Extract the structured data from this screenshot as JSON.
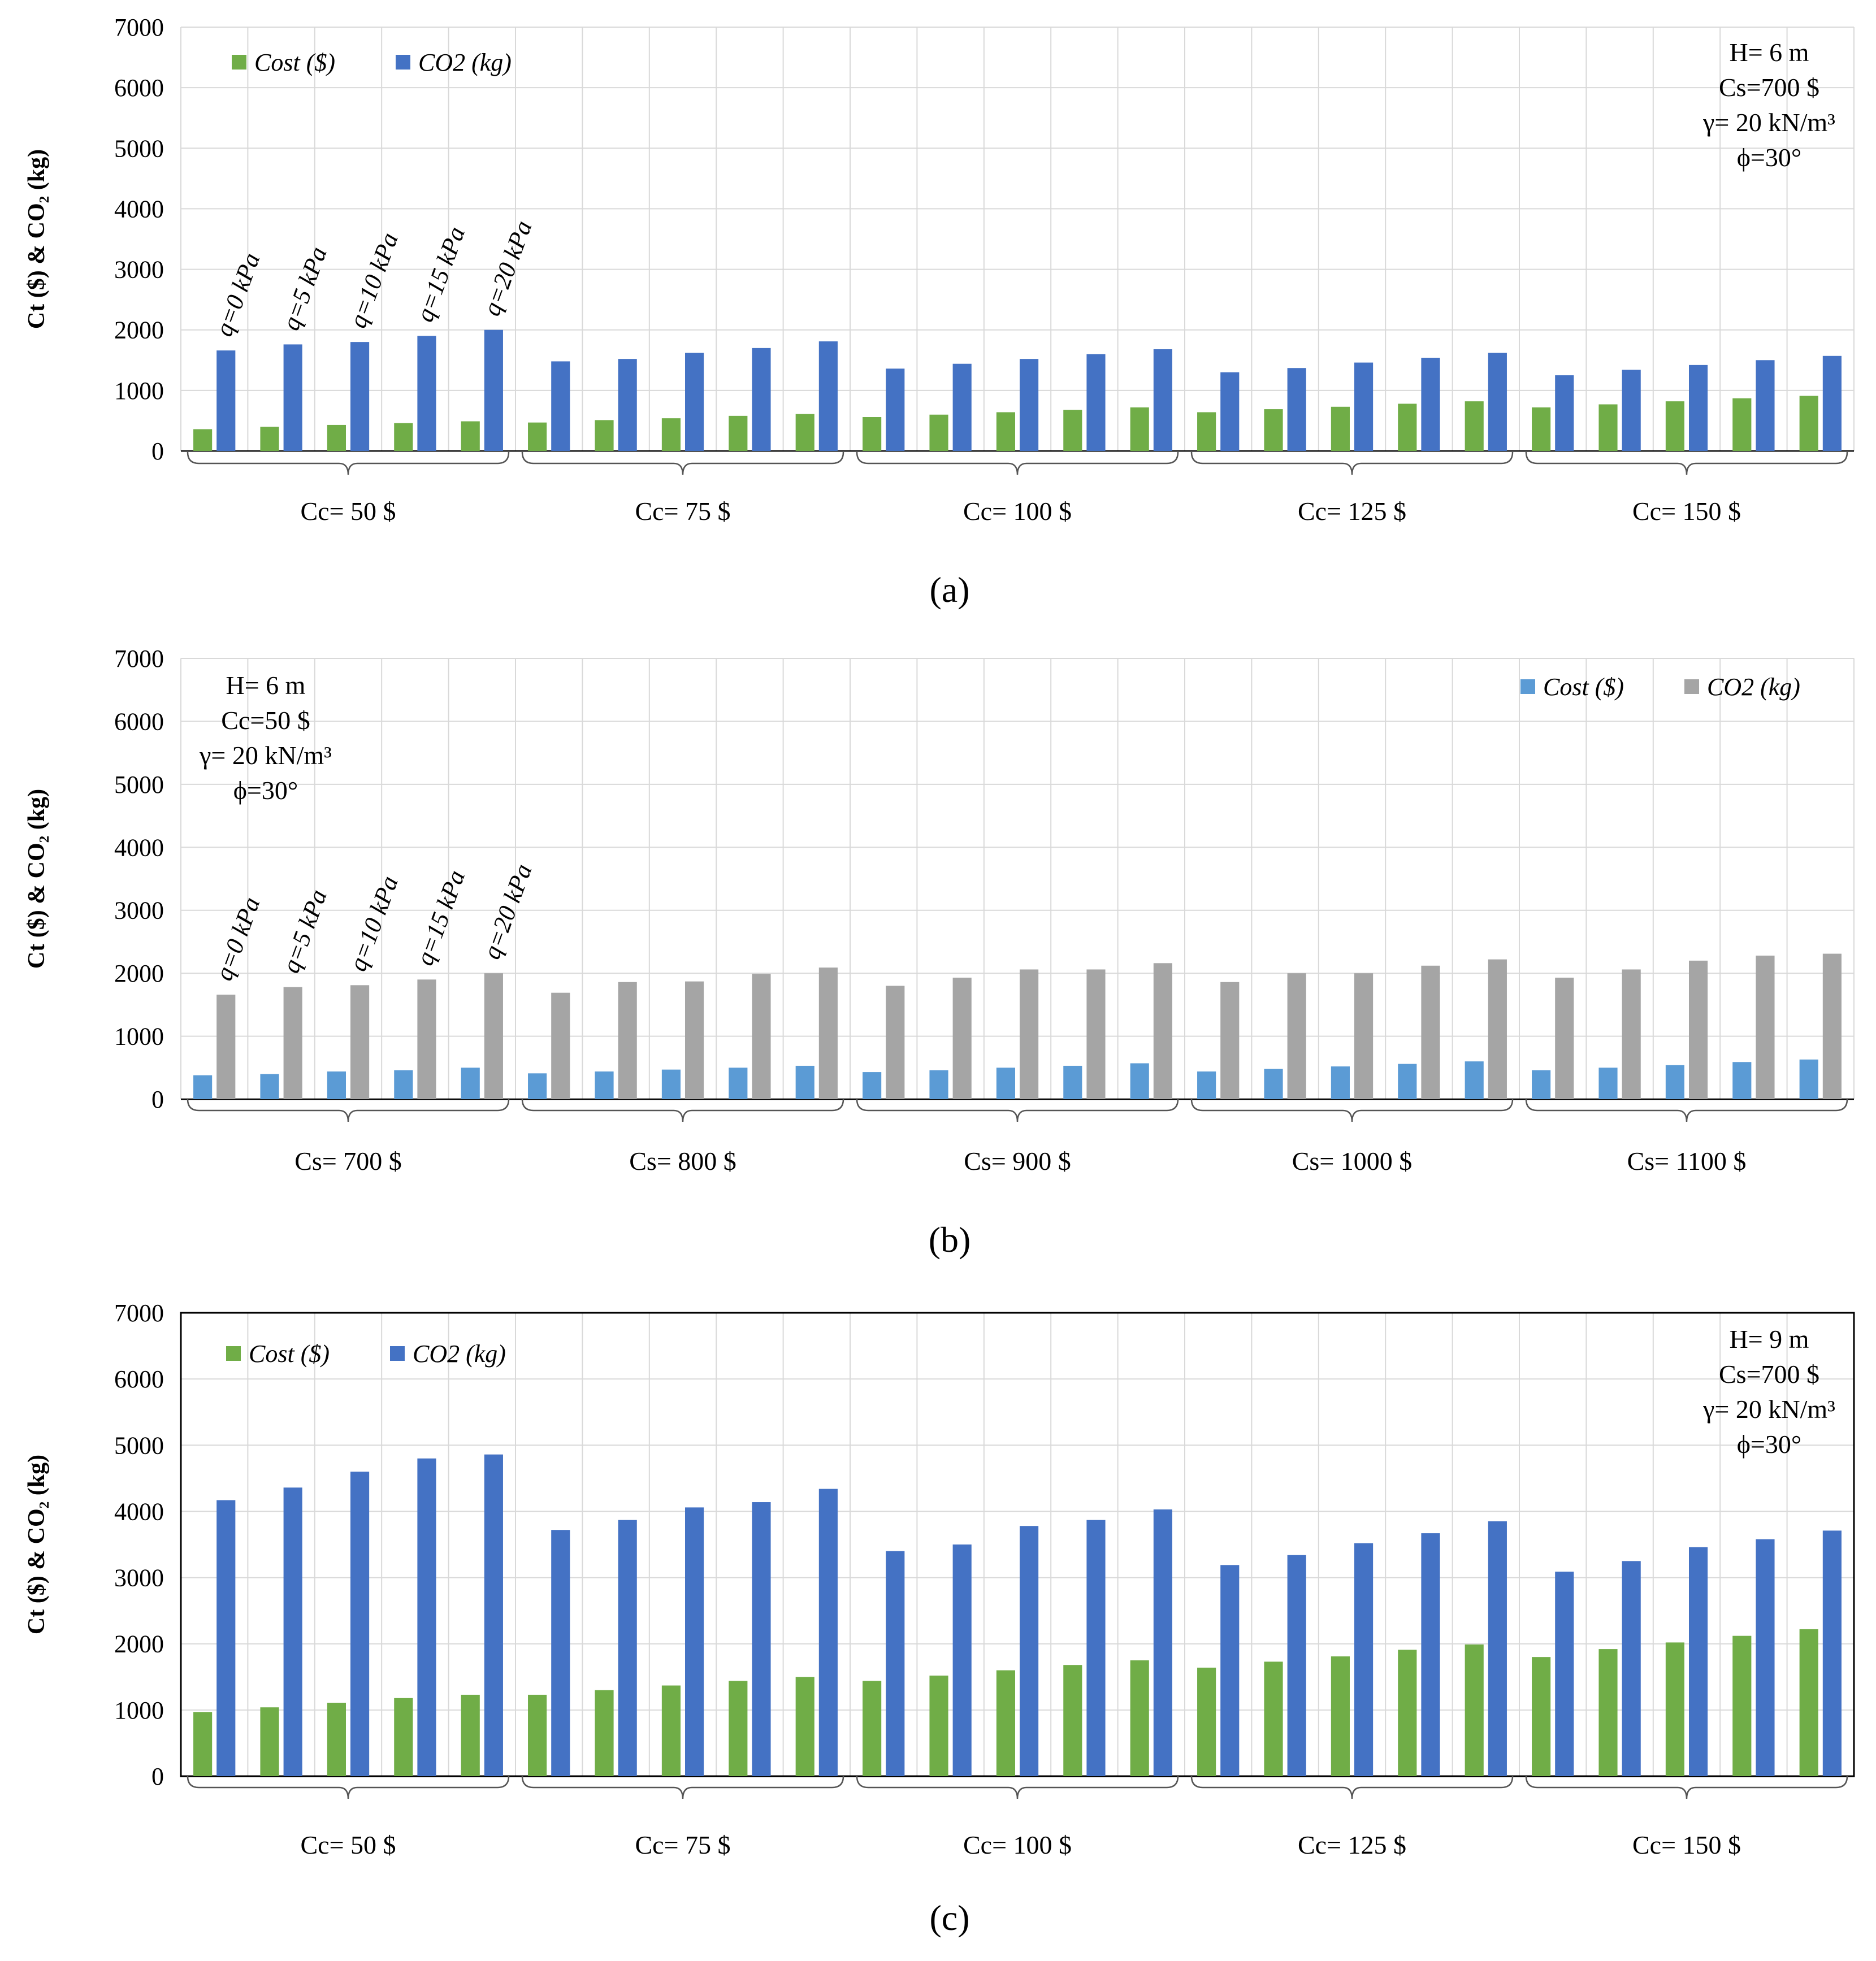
{
  "chart_data": [
    {
      "type": "bar",
      "panel_label": "(a)",
      "ylabel": "Ct ($) & CO₂ (kg)",
      "ylim": [
        0,
        7000
      ],
      "yticks": [
        "0",
        "1000",
        "2000",
        "3000",
        "4000",
        "5000",
        "6000",
        "7000"
      ],
      "groups": [
        "Cc= 50 $",
        "Cc= 75 $",
        "Cc= 100 $",
        "Cc= 125 $",
        "Cc= 150 $"
      ],
      "q_labels": [
        "q=0 kPa",
        "q=5 kPa",
        "q=10 kPa",
        "q=15 kPa",
        "q=20 kPa"
      ],
      "info": [
        "H= 6 m",
        "Cs=700 $",
        "γ= 20 kN/m³",
        "ϕ=30°"
      ],
      "info_position": "top-right",
      "legend_position": "top-left",
      "series": [
        {
          "name": "Cost ($)",
          "color": "#70ad47",
          "values": [
            360,
            400,
            430,
            460,
            490,
            470,
            510,
            540,
            580,
            610,
            560,
            600,
            640,
            680,
            720,
            640,
            690,
            730,
            780,
            820,
            720,
            770,
            820,
            870,
            910
          ]
        },
        {
          "name": "CO2 (kg)",
          "color": "#4472c4",
          "values": [
            1660,
            1760,
            1800,
            1900,
            2000,
            1480,
            1520,
            1620,
            1700,
            1810,
            1360,
            1440,
            1520,
            1600,
            1680,
            1300,
            1370,
            1460,
            1540,
            1620,
            1250,
            1340,
            1420,
            1500,
            1570
          ]
        }
      ]
    },
    {
      "type": "bar",
      "panel_label": "(b)",
      "ylabel": "Ct ($) & CO₂ (kg)",
      "ylim": [
        0,
        7000
      ],
      "yticks": [
        "0",
        "1000",
        "2000",
        "3000",
        "4000",
        "5000",
        "6000",
        "7000"
      ],
      "groups": [
        "Cs= 700 $",
        "Cs= 800 $",
        "Cs= 900 $",
        "Cs= 1000 $",
        "Cs= 1100 $"
      ],
      "q_labels": [
        "q=0 kPa",
        "q=5 kPa",
        "q=10 kPa",
        "q=15 kPa",
        "q=20 kPa"
      ],
      "info": [
        "H= 6 m",
        "Cc=50 $",
        "γ= 20 kN/m³",
        "ϕ=30°"
      ],
      "info_position": "top-left",
      "legend_position": "top-right",
      "series": [
        {
          "name": "Cost ($)",
          "color": "#5b9bd5",
          "values": [
            380,
            400,
            440,
            460,
            500,
            410,
            440,
            470,
            500,
            530,
            430,
            460,
            500,
            530,
            570,
            440,
            480,
            520,
            560,
            600,
            460,
            500,
            540,
            590,
            630
          ]
        },
        {
          "name": "CO2 (kg)",
          "color": "#a5a5a5",
          "values": [
            1660,
            1780,
            1810,
            1900,
            2000,
            1690,
            1860,
            1870,
            1990,
            2090,
            1800,
            1930,
            2060,
            2060,
            2160,
            1860,
            2000,
            2000,
            2120,
            2220,
            1930,
            2060,
            2200,
            2280,
            2310
          ]
        }
      ]
    },
    {
      "type": "bar",
      "panel_label": "(c)",
      "ylabel": "Ct ($) & CO₂ (kg)",
      "ylim": [
        0,
        7000
      ],
      "yticks": [
        "0",
        "1000",
        "2000",
        "3000",
        "4000",
        "5000",
        "6000",
        "7000"
      ],
      "groups": [
        "Cc= 50 $",
        "Cc= 75 $",
        "Cc= 100 $",
        "Cc= 125 $",
        "Cc= 150 $"
      ],
      "q_labels": [],
      "info": [
        "H= 9 m",
        "Cs=700 $",
        "γ= 20 kN/m³",
        "ϕ=30°"
      ],
      "info_position": "top-right",
      "legend_position": "top-left",
      "series": [
        {
          "name": "Cost ($)",
          "color": "#70ad47",
          "values": [
            970,
            1040,
            1110,
            1180,
            1230,
            1230,
            1300,
            1370,
            1440,
            1500,
            1440,
            1520,
            1600,
            1680,
            1750,
            1640,
            1730,
            1810,
            1910,
            1990,
            1800,
            1920,
            2020,
            2120,
            2220
          ]
        },
        {
          "name": "CO2 (kg)",
          "color": "#4472c4",
          "values": [
            4170,
            4360,
            4600,
            4800,
            4860,
            3720,
            3870,
            4060,
            4140,
            4340,
            3400,
            3500,
            3780,
            3870,
            4030,
            3190,
            3340,
            3520,
            3670,
            3850,
            3090,
            3250,
            3460,
            3580,
            3710
          ]
        }
      ]
    }
  ]
}
